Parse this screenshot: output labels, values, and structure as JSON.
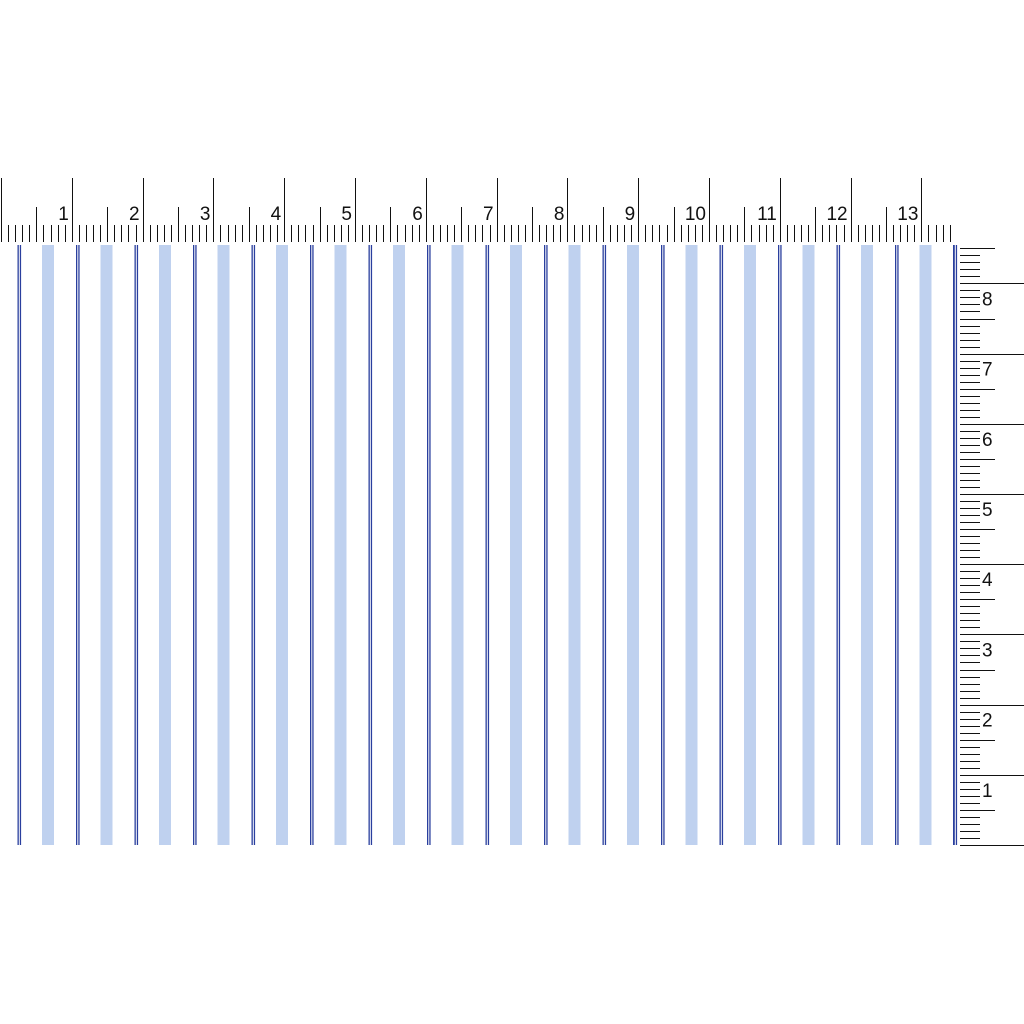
{
  "top_ruler": {
    "labels": [
      "1",
      "2",
      "3",
      "4",
      "5",
      "6",
      "7",
      "8",
      "9",
      "10",
      "11",
      "12",
      "13"
    ]
  },
  "side_ruler": {
    "labels": [
      "1",
      "2",
      "3",
      "4",
      "5",
      "6",
      "7",
      "8"
    ]
  },
  "swatch": {
    "pattern": "vertical-stripes",
    "colors": {
      "dark_stripe": "#2a3f9e",
      "light_stripe": "#a9c1ea",
      "background": "#ffffff",
      "ruler": "#111111"
    }
  }
}
